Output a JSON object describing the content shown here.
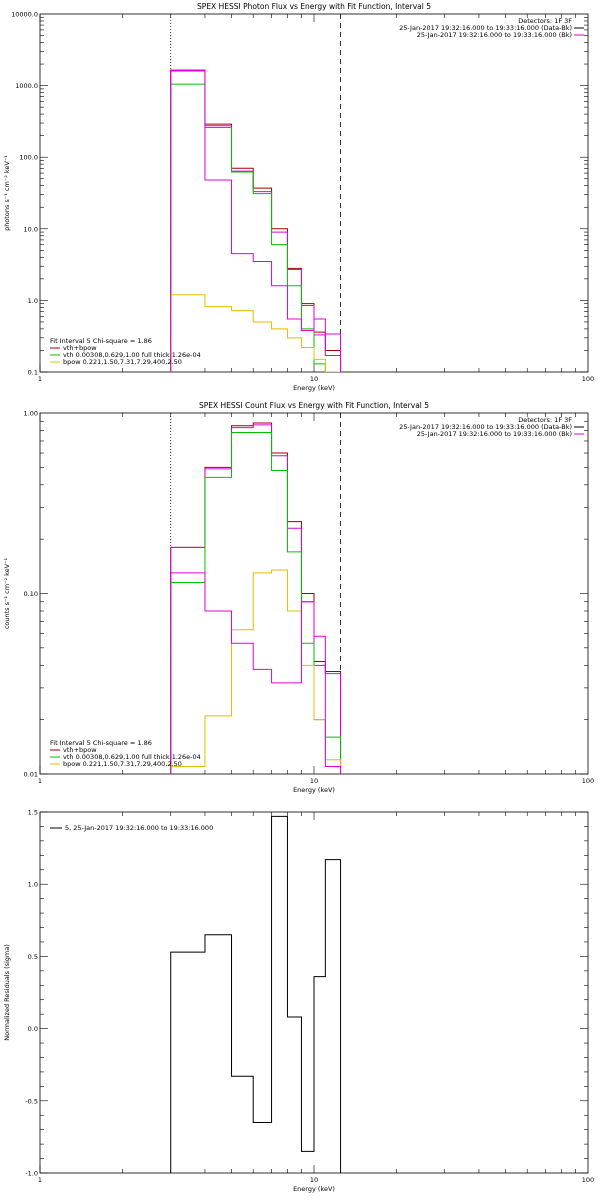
{
  "colors": {
    "background": "#ffffff",
    "axis": "#000000",
    "data": "#a00000",
    "model_total": "#e000e0",
    "vth": "#00c000",
    "bpow": "#e0c000",
    "residuals": "#000000"
  },
  "chart_data": [
    {
      "type": "line",
      "title": "SPEX HESSI Photon Flux vs Energy with Fit Function, Interval 5",
      "xlabel": "Energy (keV)",
      "ylabel": "photons s⁻¹ cm⁻² keV⁻¹",
      "xscale": "log",
      "yscale": "log",
      "xlim": [
        1,
        100
      ],
      "ylim": [
        0.1,
        10000
      ],
      "x_ticks": [
        {
          "v": 1,
          "label": "1"
        },
        {
          "v": 10,
          "label": "10"
        },
        {
          "v": 100,
          "label": "100"
        }
      ],
      "y_ticks": [
        {
          "v": 0.1,
          "label": "0.1"
        },
        {
          "v": 1,
          "label": "1.0"
        },
        {
          "v": 10,
          "label": "10.0"
        },
        {
          "v": 100,
          "label": "100.0"
        },
        {
          "v": 1000,
          "label": "1000.0"
        },
        {
          "v": 10000,
          "label": "10000.0"
        }
      ],
      "vlines": [
        {
          "x": 3,
          "style": "dotted"
        },
        {
          "x": 12.5,
          "style": "dashed"
        }
      ],
      "bin_edges": [
        3,
        4,
        5,
        6,
        7,
        8,
        9,
        10,
        11,
        12.5
      ],
      "series": [
        {
          "name": "",
          "color": "#a00000",
          "values": [
            1650,
            290,
            70,
            37,
            10,
            2.8,
            0.9,
            0.36,
            0.2
          ]
        },
        {
          "name": "vth+bpow",
          "color": "#e000e0",
          "values": [
            1600,
            275,
            64,
            33,
            9,
            2.7,
            0.85,
            0.33,
            0.17
          ]
        },
        {
          "name": "vth 0.00308,0.629,1.00  full thick 1.26e-04",
          "color": "#00c000",
          "values": [
            1050,
            260,
            62,
            31,
            6,
            1.6,
            0.4,
            0.13,
            0.04
          ]
        },
        {
          "name": "bpow 0.221,1.50,7.31,7.29,400,2.50",
          "color": "#e0c000",
          "values": [
            1.2,
            0.82,
            0.72,
            0.5,
            0.4,
            0.3,
            0.22,
            0.15,
            0.1
          ]
        },
        {
          "name": "",
          "color": "#e000e0",
          "values": [
            1650,
            48,
            4.5,
            3.5,
            1.6,
            0.55,
            0.38,
            0.55,
            0.34
          ]
        }
      ],
      "legend": {
        "position": "bottom-left",
        "header": "Fit Interval 5   Chi-square = 1.86",
        "entries": [
          {
            "label": "vth+bpow",
            "color": "#a00000"
          },
          {
            "label": "vth 0.00308,0.629,1.00  full thick 1.26e-04",
            "color": "#00c000"
          },
          {
            "label": "bpow 0.221,1.50,7.31,7.29,400,2.50",
            "color": "#e0c000"
          }
        ]
      },
      "info": {
        "position": "top-right",
        "detectors": "Detectors: 1F 3F",
        "lines": [
          {
            "label": "25-Jan-2017 19:32:16.000 to 19:33:16.000 (Data-Bk)",
            "color": "#000000"
          },
          {
            "label": "25-Jan-2017 19:32:16.000 to 19:33:16.000 (Bk)",
            "color": "#e000e0"
          }
        ]
      }
    },
    {
      "type": "line",
      "title": "SPEX HESSI Count Flux vs Energy with Fit Function, Interval 5",
      "xlabel": "Energy (keV)",
      "ylabel": "counts s⁻¹ cm⁻² keV⁻¹",
      "xscale": "log",
      "yscale": "log",
      "xlim": [
        1,
        100
      ],
      "ylim": [
        0.01,
        1
      ],
      "x_ticks": [
        {
          "v": 1,
          "label": "1"
        },
        {
          "v": 10,
          "label": "10"
        },
        {
          "v": 100,
          "label": "100"
        }
      ],
      "y_ticks": [
        {
          "v": 0.01,
          "label": "0.01"
        },
        {
          "v": 0.1,
          "label": "0.10"
        },
        {
          "v": 1,
          "label": "1.00"
        }
      ],
      "vlines": [
        {
          "x": 3,
          "style": "dotted"
        },
        {
          "x": 12.5,
          "style": "dashed"
        }
      ],
      "bin_edges": [
        3,
        4,
        5,
        6,
        7,
        8,
        9,
        10,
        11,
        12.5
      ],
      "series": [
        {
          "name": "",
          "color": "#a00000",
          "values": [
            0.18,
            0.5,
            0.85,
            0.88,
            0.6,
            0.25,
            0.1,
            0.042,
            0.037
          ]
        },
        {
          "name": "vth+bpow",
          "color": "#e000e0",
          "values": [
            0.18,
            0.49,
            0.83,
            0.86,
            0.58,
            0.23,
            0.09,
            0.04,
            0.036
          ]
        },
        {
          "name": "vth 0.00308,0.629,1.00  full thick 1.26e-04",
          "color": "#00c000",
          "values": [
            0.115,
            0.44,
            0.78,
            0.78,
            0.48,
            0.17,
            0.053,
            0.02,
            0.016
          ]
        },
        {
          "name": "bpow 0.221,1.50,7.31,7.29,400,2.50",
          "color": "#e0c000",
          "values": [
            0.011,
            0.021,
            0.063,
            0.13,
            0.135,
            0.08,
            0.04,
            0.02,
            0.012
          ]
        },
        {
          "name": "",
          "color": "#e000e0",
          "values": [
            0.13,
            0.08,
            0.053,
            0.038,
            0.032,
            0.032,
            0.09,
            0.058,
            0.011
          ]
        }
      ],
      "legend": {
        "position": "bottom-left",
        "header": "Fit Interval 5   Chi-square = 1.86",
        "entries": [
          {
            "label": "vth+bpow",
            "color": "#a00000"
          },
          {
            "label": "vth 0.00308,0.629,1.00  full thick 1.26e-04",
            "color": "#00c000"
          },
          {
            "label": "bpow 0.221,1.50,7.31,7.29,400,2.50",
            "color": "#e0c000"
          }
        ]
      },
      "info": {
        "position": "top-right",
        "detectors": "Detectors: 1F 3F",
        "lines": [
          {
            "label": "25-Jan-2017 19:32:16.000 to 19:33:16.000 (Data-Bk)",
            "color": "#000000"
          },
          {
            "label": "25-Jan-2017 19:32:16.000 to 19:33:16.000 (Bk)",
            "color": "#e000e0"
          }
        ]
      }
    },
    {
      "type": "line",
      "title": "",
      "xlabel": "Energy (keV)",
      "ylabel": "Normalized Residuals (sigma)",
      "xscale": "log",
      "yscale": "linear",
      "xlim": [
        1,
        100
      ],
      "ylim": [
        -1,
        1.5
      ],
      "x_ticks": [
        {
          "v": 1,
          "label": "1"
        },
        {
          "v": 10,
          "label": "10"
        },
        {
          "v": 100,
          "label": "100"
        }
      ],
      "y_ticks": [
        {
          "v": -1,
          "label": "-1.0"
        },
        {
          "v": -0.5,
          "label": "-0.5"
        },
        {
          "v": 0,
          "label": "0.0"
        },
        {
          "v": 0.5,
          "label": "0.5"
        },
        {
          "v": 1,
          "label": "1.0"
        },
        {
          "v": 1.5,
          "label": "1.5"
        }
      ],
      "vlines": [],
      "bin_edges": [
        3,
        4,
        5,
        6,
        7,
        8,
        9,
        10,
        11,
        12.5
      ],
      "series": [
        {
          "name": "5, 25-Jan-2017 19:32:16.000 to 19:33:16.000",
          "color": "#000000",
          "values": [
            0.53,
            0.65,
            -0.33,
            -0.65,
            1.47,
            0.08,
            -0.85,
            0.36,
            1.17
          ]
        }
      ],
      "legend": {
        "position": "top-left",
        "header": "",
        "entries": [
          {
            "label": "5, 25-Jan-2017 19:32:16.000 to 19:33:16.000",
            "color": "#000000"
          }
        ]
      },
      "info": null
    }
  ]
}
